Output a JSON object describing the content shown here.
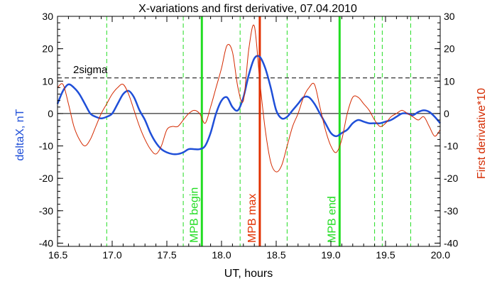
{
  "chart_data": {
    "type": "line",
    "title": "X-variations and first derivative, 07.04.2010",
    "xlabel": "UT, hours",
    "ylabel_left": "deltaX, nT",
    "ylabel_right": "First derivative*10",
    "xlim": [
      16.5,
      20.0
    ],
    "ylim": [
      -41,
      30
    ],
    "x_ticks": [
      "16.5",
      "17.0",
      "17.5",
      "18.0",
      "18.5",
      "19.0",
      "19.5",
      "20.0"
    ],
    "y_ticks_left": [
      "30",
      "20",
      "10",
      "0",
      "-10",
      "-20",
      "-30",
      "-40"
    ],
    "y_ticks_right": [
      "30",
      "20",
      "10",
      "0",
      "-10",
      "-20",
      "-30",
      "-40"
    ],
    "threshold": {
      "label": "2sigma",
      "value": 11
    },
    "zero_line": 0,
    "colors": {
      "deltaX": "#1f4fd8",
      "derivative": "#d42a00",
      "green": "#22dd22",
      "red": "#e23000"
    },
    "series": [
      {
        "name": "deltaX",
        "x": [
          16.5,
          16.55,
          16.6,
          16.65,
          16.7,
          16.75,
          16.8,
          16.85,
          16.9,
          16.95,
          17.0,
          17.05,
          17.1,
          17.15,
          17.2,
          17.25,
          17.3,
          17.35,
          17.4,
          17.45,
          17.5,
          17.55,
          17.6,
          17.65,
          17.7,
          17.75,
          17.8,
          17.85,
          17.9,
          17.95,
          18.0,
          18.05,
          18.1,
          18.15,
          18.2,
          18.25,
          18.3,
          18.35,
          18.4,
          18.45,
          18.5,
          18.55,
          18.6,
          18.65,
          18.7,
          18.75,
          18.8,
          18.85,
          18.9,
          18.95,
          19.0,
          19.05,
          19.1,
          19.15,
          19.2,
          19.25,
          19.3,
          19.35,
          19.4,
          19.45,
          19.5,
          19.55,
          19.6,
          19.65,
          19.7,
          19.75,
          19.8,
          19.85,
          19.9,
          19.95,
          20.0
        ],
        "y": [
          3,
          7,
          9,
          8,
          6,
          3,
          0,
          -1,
          -1.5,
          -1,
          0,
          3,
          6,
          7,
          5,
          1,
          -2,
          -6,
          -9,
          -11,
          -12,
          -12.5,
          -12.5,
          -12,
          -11,
          -11,
          -11,
          -10,
          -6,
          0,
          4,
          5,
          2,
          1,
          5,
          12,
          17,
          17.5,
          14,
          8,
          1,
          -1.5,
          -1,
          1,
          3,
          5,
          5,
          3,
          0,
          -3,
          -6,
          -7,
          -6,
          -5,
          -3,
          -2,
          -2.5,
          -3,
          -3,
          -3,
          -2.5,
          -2,
          -1,
          0,
          0,
          -0.5,
          0.5,
          1,
          0.5,
          -1,
          -3
        ]
      },
      {
        "name": "First derivative*10",
        "x": [
          16.5,
          16.55,
          16.6,
          16.65,
          16.7,
          16.75,
          16.8,
          16.85,
          16.9,
          16.95,
          17.0,
          17.05,
          17.1,
          17.15,
          17.2,
          17.25,
          17.3,
          17.35,
          17.4,
          17.45,
          17.5,
          17.55,
          17.6,
          17.65,
          17.7,
          17.75,
          17.8,
          17.85,
          17.9,
          17.95,
          18.0,
          18.05,
          18.1,
          18.15,
          18.2,
          18.25,
          18.3,
          18.35,
          18.4,
          18.45,
          18.5,
          18.55,
          18.6,
          18.65,
          18.7,
          18.75,
          18.8,
          18.85,
          18.9,
          18.95,
          19.0,
          19.05,
          19.1,
          19.15,
          19.2,
          19.25,
          19.3,
          19.35,
          19.4,
          19.45,
          19.5,
          19.55,
          19.6,
          19.65,
          19.7,
          19.75,
          19.8,
          19.85,
          19.9,
          19.95,
          20.0
        ],
        "y": [
          8,
          9,
          3,
          -4,
          -8,
          -10,
          -8,
          -4,
          0,
          3,
          6,
          8,
          9,
          6,
          1,
          -4,
          -8,
          -11,
          -12.5,
          -10,
          -5,
          -4,
          -4,
          -2,
          0,
          1,
          0,
          -3,
          2,
          8,
          14,
          21,
          19,
          8,
          4,
          20,
          27,
          10,
          -5,
          -15,
          -18,
          -16,
          -10,
          -4,
          0,
          5,
          8,
          9,
          2,
          -5,
          -10,
          -12,
          -8,
          0,
          5,
          5,
          3,
          1,
          -2,
          -4,
          -3,
          -1,
          0,
          1,
          0,
          -1,
          -2,
          -1,
          -4,
          -7,
          -5
        ]
      }
    ],
    "markers": [
      {
        "x": 16.95,
        "kind": "dashed",
        "color": "green"
      },
      {
        "x": 17.65,
        "kind": "dashed",
        "color": "green"
      },
      {
        "x": 17.82,
        "kind": "solid",
        "color": "green",
        "label": "MPB begin"
      },
      {
        "x": 18.17,
        "kind": "dashed",
        "color": "green"
      },
      {
        "x": 18.35,
        "kind": "solid",
        "color": "red",
        "label": "MPB max"
      },
      {
        "x": 18.6,
        "kind": "dashed",
        "color": "green"
      },
      {
        "x": 19.08,
        "kind": "solid",
        "color": "green",
        "label": "MPB end"
      },
      {
        "x": 19.4,
        "kind": "dashed",
        "color": "green"
      },
      {
        "x": 19.47,
        "kind": "dashed",
        "color": "green"
      },
      {
        "x": 19.73,
        "kind": "dashed",
        "color": "green"
      }
    ]
  }
}
